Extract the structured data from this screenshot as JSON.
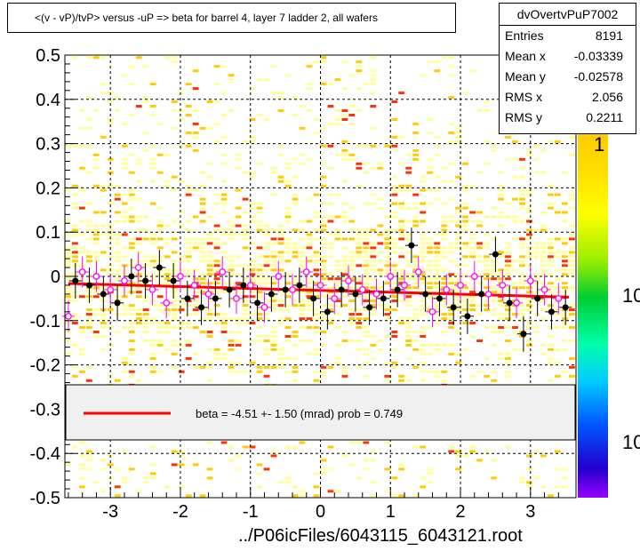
{
  "header": {
    "title": "<(v - vP)/tvP> versus  -uP => beta for barrel 4, layer 7 ladder 2, all wafers"
  },
  "stats_box": {
    "name": "dvOvertvPuP7002",
    "rows": [
      {
        "label": "Entries",
        "value": "8191"
      },
      {
        "label": "Mean x",
        "value": "-0.03339"
      },
      {
        "label": "Mean y",
        "value": "-0.02578"
      },
      {
        "label": "RMS x",
        "value": "2.056"
      },
      {
        "label": "RMS y",
        "value": "0.2211"
      }
    ]
  },
  "fit_legend": {
    "text": "beta =   -4.51 +-  1.50 (mrad) prob = 0.749",
    "line_color": "#ff0000"
  },
  "footer": {
    "filename": "../P06icFiles/6043115_6043121.root"
  },
  "color_scale": {
    "tick_labels": [
      "1",
      "10",
      "10"
    ]
  },
  "colors": {
    "fill_light": "#ffff99",
    "fill_mid": "#ffcc00",
    "fill_dark": "#ff3300",
    "fit": "#ff0000",
    "open_marker": "#ff00ff"
  },
  "chart_data": {
    "type": "scatter",
    "title": "<(v - vP)/tvP> versus  -uP => beta for barrel 4, layer 7 ladder 2, all wafers",
    "xlabel": "",
    "ylabel": "",
    "xlim": [
      -3.65,
      3.65
    ],
    "ylim": [
      -0.5,
      0.5
    ],
    "x_ticks": [
      -3,
      -2,
      -1,
      0,
      1,
      2,
      3
    ],
    "x_tick_labels": [
      "-3",
      "-2",
      "-1",
      "0",
      "1",
      "2",
      "3"
    ],
    "y_ticks": [
      0.5,
      0.4,
      0.3,
      0.2,
      0.1,
      0,
      -0.1,
      -0.2,
      -0.3,
      -0.4,
      -0.5
    ],
    "y_tick_labels": [
      "0.5",
      "0.4",
      "0.3",
      "0.2",
      "0.1",
      "0",
      "-0.1",
      "-0.2",
      "-0.3",
      "-0.4",
      "-0.5"
    ],
    "grid": true,
    "series": [
      {
        "x": [
          -3.5,
          -3.3,
          -3.1,
          -2.9,
          -2.7,
          -2.5,
          -2.3,
          -2.1,
          -1.9,
          -1.7,
          -1.5,
          -1.3,
          -1.1,
          -0.9,
          -0.7,
          -0.5,
          -0.3,
          -0.1,
          0.1,
          0.3,
          0.5,
          0.7,
          0.9,
          1.1,
          1.3,
          1.5,
          1.7,
          1.9,
          2.1,
          2.3,
          2.5,
          2.7,
          2.9,
          3.1,
          3.3,
          3.5
        ],
        "y": [
          -0.01,
          -0.02,
          -0.04,
          -0.06,
          0.0,
          -0.01,
          0.02,
          -0.01,
          -0.05,
          -0.07,
          -0.05,
          -0.03,
          -0.02,
          -0.06,
          -0.04,
          -0.03,
          -0.02,
          -0.05,
          -0.08,
          -0.03,
          -0.04,
          -0.07,
          -0.05,
          -0.03,
          0.07,
          -0.04,
          -0.05,
          -0.07,
          -0.09,
          -0.04,
          0.05,
          -0.06,
          -0.13,
          -0.05,
          -0.08,
          -0.07
        ]
      },
      {
        "x": [
          -3.6,
          -3.4,
          -3.2,
          -3.0,
          -2.8,
          -2.6,
          -2.4,
          -2.2,
          -2.0,
          -1.8,
          -1.6,
          -1.4,
          -1.2,
          -1.0,
          -0.8,
          -0.6,
          -0.4,
          -0.2,
          0.0,
          0.2,
          0.4,
          0.6,
          0.8,
          1.0,
          1.2,
          1.4,
          1.6,
          1.8,
          2.0,
          2.2,
          2.4,
          2.6,
          2.8,
          3.0,
          3.2,
          3.4
        ],
        "y": [
          -0.09,
          0.01,
          0.0,
          -0.03,
          -0.01,
          0.02,
          -0.03,
          -0.06,
          0.0,
          -0.02,
          -0.04,
          0.01,
          -0.05,
          -0.02,
          -0.07,
          0.0,
          -0.03,
          0.01,
          -0.02,
          -0.05,
          -0.01,
          -0.03,
          -0.04,
          0.0,
          -0.02,
          0.01,
          -0.08,
          -0.03,
          -0.02,
          0.0,
          -0.04,
          -0.02,
          -0.06,
          -0.01,
          -0.03,
          -0.05
        ]
      },
      {
        "x": [
          -3.6,
          3.55
        ],
        "y": [
          -0.016,
          -0.047
        ]
      }
    ],
    "color_scale_ticks": [
      "1",
      "10",
      "10"
    ]
  }
}
